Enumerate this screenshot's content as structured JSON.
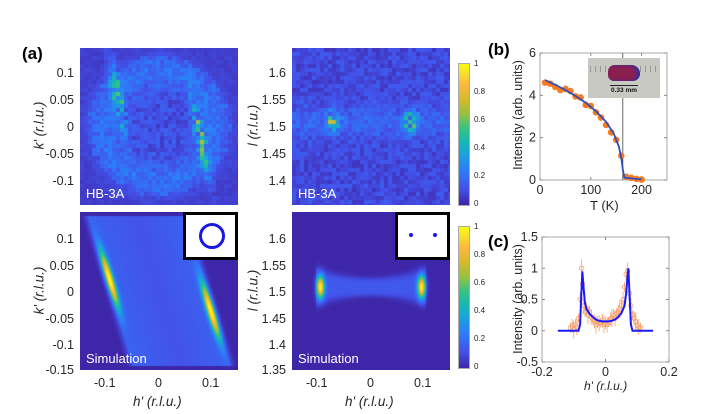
{
  "figure": {
    "panel_labels": {
      "a": "(a)",
      "b": "(b)",
      "c": "(c)"
    },
    "colormap": "parula",
    "map_background": "#3e26a8"
  },
  "chart_data": [
    {
      "id": "a-top-left",
      "type": "heatmap",
      "source_label": "HB-3A",
      "xlabel": "",
      "ylabel": "k' (r.l.u.)",
      "ylim": [
        -0.14,
        0.14
      ],
      "yticks": [
        "0.1",
        "0.05",
        "0",
        "-0.05",
        "-0.1"
      ],
      "xlim": [
        -0.15,
        0.15
      ],
      "description": "Two tilted streaks near h'=-0.07 and h'=+0.07 on a faint ring"
    },
    {
      "id": "a-top-right",
      "type": "heatmap",
      "source_label": "HB-3A",
      "xlabel": "",
      "ylabel": "l (r.l.u.)",
      "ylim": [
        1.36,
        1.64
      ],
      "yticks": [
        "1.6",
        "1.55",
        "1.5",
        "1.45",
        "1.4"
      ],
      "xlim": [
        -0.15,
        0.15
      ],
      "colorbar": {
        "ticks": [
          "1",
          "0.8",
          "0.6",
          "0.4",
          "0.2",
          "0"
        ],
        "range": [
          0,
          1
        ]
      }
    },
    {
      "id": "a-bottom-left",
      "type": "heatmap",
      "source_label": "Simulation",
      "inset": "ring",
      "xlabel": "h' (r.l.u.)",
      "ylabel": "k' (r.l.u.)",
      "ylim": [
        -0.15,
        0.15
      ],
      "yticks": [
        "0.1",
        "0.05",
        "0",
        "-0.05",
        "-0.1",
        "-0.15"
      ],
      "xlim": [
        -0.15,
        0.15
      ],
      "xticks": [
        "-0.1",
        "0",
        "0.1"
      ]
    },
    {
      "id": "a-bottom-right",
      "type": "heatmap",
      "source_label": "Simulation",
      "inset": "two-dots",
      "xlabel": "h' (r.l.u.)",
      "ylabel": "l (r.l.u.)",
      "ylim": [
        1.35,
        1.65
      ],
      "yticks": [
        "1.6",
        "1.55",
        "1.5",
        "1.45",
        "1.4",
        "1.35"
      ],
      "xlim": [
        -0.15,
        0.15
      ],
      "xticks": [
        "-0.1",
        "0",
        "0.1"
      ],
      "colorbar": {
        "ticks": [
          "1",
          "0.8",
          "0.6",
          "0.4",
          "0.2",
          "0"
        ],
        "range": [
          0,
          1
        ]
      }
    },
    {
      "id": "b",
      "type": "scatter",
      "xlabel": "T (K)",
      "ylabel": "Intensity (arb. units)",
      "xlim": [
        0,
        250
      ],
      "ylim": [
        0,
        6
      ],
      "xticks": [
        0,
        100,
        200
      ],
      "yticks": [
        0,
        2,
        4,
        6
      ],
      "inset_caption": "0.33 mm",
      "vertical_line_x": 163,
      "series": [
        {
          "name": "data",
          "color": "#f97a1f",
          "x": [
            10,
            20,
            30,
            40,
            50,
            60,
            70,
            80,
            90,
            100,
            110,
            120,
            130,
            140,
            150,
            160,
            170,
            180,
            190,
            200
          ],
          "y": [
            4.6,
            4.55,
            4.4,
            4.25,
            4.3,
            4.2,
            3.95,
            3.9,
            3.55,
            3.5,
            3.2,
            2.95,
            2.6,
            2.25,
            1.9,
            1.15,
            0.15,
            0.1,
            0.05,
            0.02
          ]
        },
        {
          "name": "fit",
          "color": "#3050b8",
          "x": [
            10,
            30,
            50,
            70,
            90,
            110,
            130,
            145,
            155,
            160,
            163,
            166,
            170,
            190,
            200
          ],
          "y": [
            4.72,
            4.5,
            4.25,
            3.97,
            3.65,
            3.25,
            2.75,
            2.2,
            1.6,
            1.05,
            0.5,
            0.12,
            0.1,
            0.05,
            0.03
          ]
        }
      ]
    },
    {
      "id": "c",
      "type": "line",
      "xlabel": "h' (r.l.u.)",
      "ylabel": "Intensity (arb. units)",
      "xlim": [
        -0.2,
        0.2
      ],
      "ylim": [
        -0.5,
        1.5
      ],
      "xticks": [
        -0.2,
        0,
        0.2
      ],
      "yticks": [
        -0.5,
        0,
        0.5,
        1,
        1.5
      ],
      "series": [
        {
          "name": "data",
          "color": "#f5a06a",
          "x": [
            -0.11,
            -0.105,
            -0.1,
            -0.095,
            -0.09,
            -0.085,
            -0.08,
            -0.075,
            -0.072,
            -0.068,
            -0.064,
            -0.06,
            -0.055,
            -0.05,
            -0.045,
            -0.04,
            -0.035,
            -0.03,
            -0.025,
            -0.02,
            -0.015,
            -0.01,
            -0.005,
            0,
            0.005,
            0.01,
            0.015,
            0.02,
            0.025,
            0.03,
            0.035,
            0.04,
            0.045,
            0.05,
            0.055,
            0.06,
            0.065,
            0.07,
            0.075,
            0.08,
            0.085,
            0.09,
            0.095,
            0.1,
            0.105,
            0.11
          ],
          "y": [
            0.05,
            0.08,
            0.02,
            0.1,
            0.06,
            0.2,
            0.5,
            1.0,
            0.75,
            0.4,
            0.3,
            0.35,
            0.25,
            0.3,
            0.22,
            0.18,
            0.15,
            0.1,
            0.14,
            0.12,
            0.13,
            0.16,
            0.1,
            0.12,
            0.1,
            0.14,
            0.18,
            0.2,
            0.25,
            0.2,
            0.28,
            0.3,
            0.35,
            0.4,
            0.5,
            0.7,
            0.9,
            0.95,
            0.6,
            0.4,
            0.25,
            0.2,
            0.15,
            0.08,
            0.06,
            0.05
          ]
        },
        {
          "name": "fit",
          "color": "#1a1aff",
          "x": [
            -0.15,
            -0.085,
            -0.08,
            -0.076,
            -0.073,
            -0.07,
            -0.065,
            -0.06,
            -0.05,
            -0.04,
            -0.03,
            -0.02,
            -0.01,
            0,
            0.01,
            0.02,
            0.03,
            0.04,
            0.05,
            0.06,
            0.065,
            0.07,
            0.072,
            0.076,
            0.08,
            0.085,
            0.15
          ],
          "y": [
            0,
            0,
            0.1,
            0.6,
            0.95,
            0.75,
            0.45,
            0.35,
            0.27,
            0.22,
            0.18,
            0.16,
            0.15,
            0.15,
            0.15,
            0.16,
            0.18,
            0.22,
            0.28,
            0.4,
            0.6,
            0.9,
            1.0,
            0.55,
            0.1,
            0,
            0
          ]
        }
      ]
    }
  ]
}
